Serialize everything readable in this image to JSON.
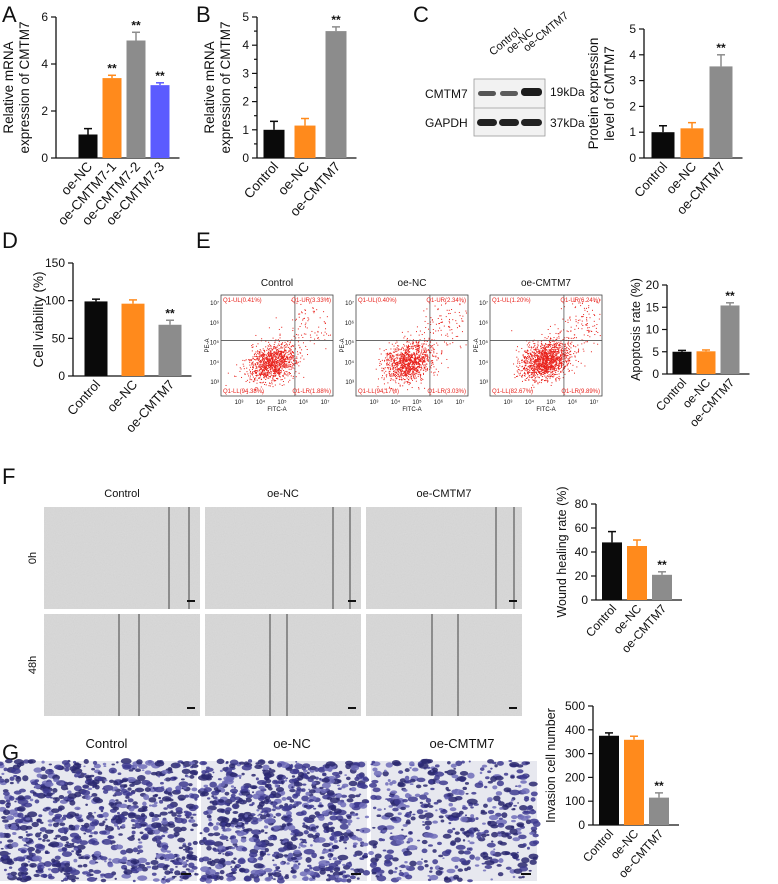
{
  "colors": {
    "black": "#0a0a0a",
    "orange": "#ff8a1c",
    "gray": "#8c8c8c",
    "blue": "#5b5bff",
    "dot": "#e8211b",
    "stain": "#3d3a8f"
  },
  "panel_letters": {
    "A": "A",
    "B": "B",
    "C": "C",
    "D": "D",
    "E": "E",
    "F": "F",
    "G": "G"
  },
  "charts": [
    {
      "id": "A",
      "type": "bar",
      "ylabel": "Relative mRNA\nexpression of CMTM7",
      "categories": [
        "oe-NC",
        "oe-CMTM7-1",
        "oe-CMTM7-2",
        "oe-CMTM7-3"
      ],
      "values": [
        1.0,
        3.4,
        5.0,
        3.1
      ],
      "errors": [
        0.25,
        0.12,
        0.35,
        0.1
      ],
      "sig": [
        "",
        "**",
        "**",
        "**"
      ],
      "colors": [
        "black",
        "orange",
        "gray",
        "blue"
      ],
      "ylim": [
        0,
        6
      ],
      "ticks": [
        0,
        2,
        4,
        6
      ]
    },
    {
      "id": "B",
      "type": "bar",
      "ylabel": "Relative mRNA\nexpression of CMTM7",
      "categories": [
        "Control",
        "oe-NC",
        "oe-CMTM7"
      ],
      "values": [
        1.0,
        1.15,
        4.5
      ],
      "errors": [
        0.3,
        0.25,
        0.15
      ],
      "sig": [
        "",
        "",
        "**"
      ],
      "colors": [
        "black",
        "orange",
        "gray"
      ],
      "ylim": [
        0,
        5
      ],
      "ticks": [
        0,
        0.5,
        1,
        1.5,
        2,
        2.5,
        3,
        3.5,
        4,
        4.5,
        5
      ],
      "tick_labels": [
        "0",
        "",
        "1",
        "",
        "2",
        "",
        "3",
        "",
        "4",
        "",
        "5"
      ]
    },
    {
      "id": "C",
      "type": "bar",
      "ylabel": "Protein expression\nlevel of CMTM7",
      "categories": [
        "Control",
        "oe-NC",
        "oe-CMTM7"
      ],
      "values": [
        1.0,
        1.15,
        3.55
      ],
      "errors": [
        0.25,
        0.22,
        0.45
      ],
      "sig": [
        "",
        "",
        "**"
      ],
      "colors": [
        "black",
        "orange",
        "gray"
      ],
      "ylim": [
        0,
        5
      ],
      "ticks": [
        0,
        1,
        2,
        3,
        4,
        5
      ]
    },
    {
      "id": "D",
      "type": "bar",
      "ylabel": "Cell viability (%)",
      "categories": [
        "Control",
        "oe-NC",
        "oe-CMTM7"
      ],
      "values": [
        99,
        96,
        68
      ],
      "errors": [
        3,
        5,
        6
      ],
      "sig": [
        "",
        "",
        "**"
      ],
      "colors": [
        "black",
        "orange",
        "gray"
      ],
      "ylim": [
        0,
        150
      ],
      "ticks": [
        0,
        50,
        100,
        150
      ]
    },
    {
      "id": "E",
      "type": "bar",
      "ylabel": "Apoptosis rate (%)",
      "categories": [
        "Control",
        "oe-NC",
        "oe-CMTM7"
      ],
      "values": [
        5.0,
        5.1,
        15.4
      ],
      "errors": [
        0.3,
        0.3,
        0.6
      ],
      "sig": [
        "",
        "",
        "**"
      ],
      "colors": [
        "black",
        "orange",
        "gray"
      ],
      "ylim": [
        0,
        20
      ],
      "ticks": [
        0,
        5,
        10,
        15,
        20
      ]
    },
    {
      "id": "F",
      "type": "bar",
      "ylabel": "Wound healing rate (%)",
      "categories": [
        "Control",
        "oe-NC",
        "oe-CMTM7"
      ],
      "values": [
        48,
        45,
        21
      ],
      "errors": [
        9,
        5,
        2.5
      ],
      "sig": [
        "",
        "",
        "**"
      ],
      "colors": [
        "black",
        "orange",
        "gray"
      ],
      "ylim": [
        0,
        80
      ],
      "ticks": [
        0,
        20,
        40,
        60,
        80
      ]
    },
    {
      "id": "G",
      "type": "bar",
      "ylabel": "Invasion cell number",
      "categories": [
        "Control",
        "oe-NC",
        "oe-CMTM7"
      ],
      "values": [
        375,
        358,
        115
      ],
      "errors": [
        12,
        15,
        20
      ],
      "sig": [
        "",
        "",
        "**"
      ],
      "colors": [
        "black",
        "orange",
        "gray"
      ],
      "ylim": [
        0,
        500
      ],
      "ticks": [
        0,
        100,
        200,
        300,
        400,
        500
      ]
    }
  ],
  "western": {
    "lanes": [
      "Control",
      "oe-NC",
      "oe-CMTM7"
    ],
    "rows": [
      {
        "protein": "CMTM7",
        "size": "19kDa"
      },
      {
        "protein": "GAPDH",
        "size": "37kDa"
      }
    ]
  },
  "flow": {
    "titles": [
      "Control",
      "oe-NC",
      "oe-CMTM7"
    ],
    "xaxis": "FITC-A",
    "yaxis": "PE-A",
    "quadrants": [
      {
        "ul": "Q1-UL(0.41%)",
        "ur": "Q1-UR(3.33%)",
        "ll": "Q1-LL(94.38%)",
        "lr": "Q1-LR(1.88%)"
      },
      {
        "ul": "Q1-UL(0.40%)",
        "ur": "Q1-UR(2.34%)",
        "ll": "Q1-LL(94.17%)",
        "lr": "Q1-LR(3.03%)"
      },
      {
        "ul": "Q1-UL(1.20%)",
        "ur": "Q1-UR(6.24%)",
        "ll": "Q1-LL(82.67%)",
        "lr": "Q1-LR(9.89%)"
      }
    ],
    "xticks": [
      "10³",
      "10⁴",
      "10⁵",
      "10⁶",
      "10⁷"
    ],
    "yticks": [
      "10³",
      "10⁴",
      "10⁵",
      "10⁶",
      "10⁷"
    ]
  },
  "wound": {
    "columns": [
      "Control",
      "oe-NC",
      "oe-CMTM7"
    ],
    "rows": [
      "0h",
      "48h"
    ]
  },
  "transwell": {
    "columns": [
      "Control",
      "oe-NC",
      "oe-CMTM7"
    ]
  }
}
